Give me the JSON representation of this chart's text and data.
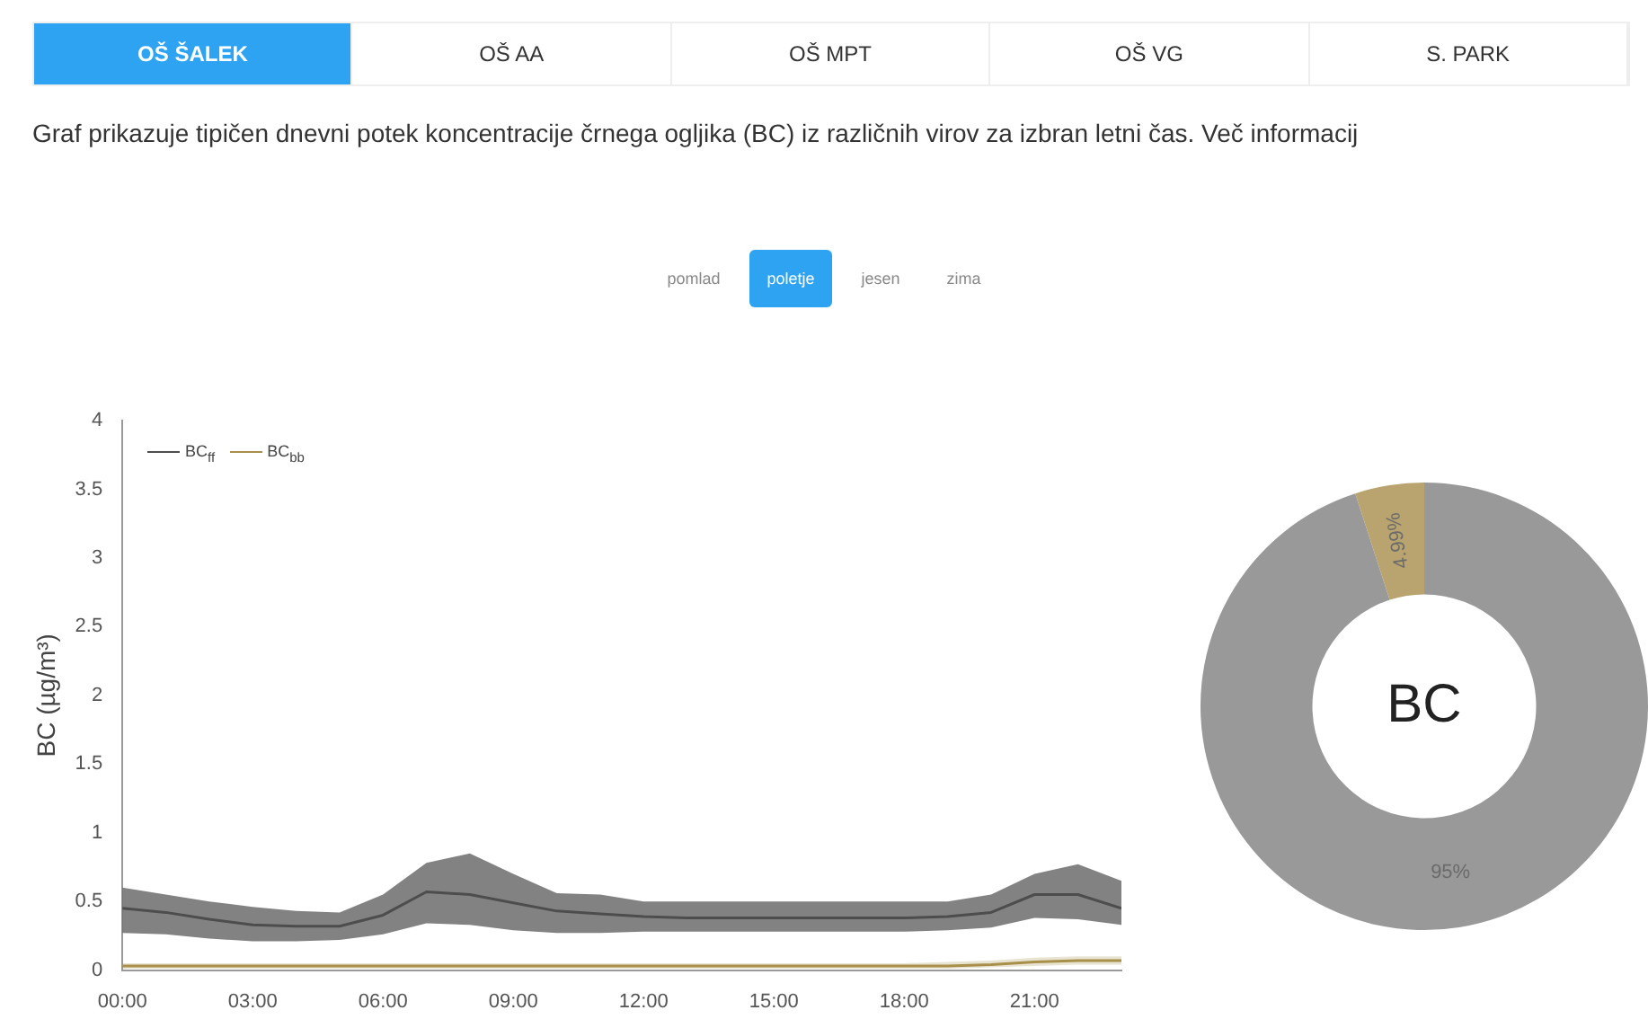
{
  "chart_data": [
    {
      "type": "line",
      "subtitle": "Graf prikazuje tipičen dnevni potek koncentracije črnega ogljika (BC) iz različnih virov za izbran letni čas. Več informacij",
      "annotations": [
        "OŠ ŠALEK",
        "OŠ AA",
        "OŠ MPT",
        "OŠ VG",
        "S. PARK",
        "pomlad",
        "poletje",
        "jesen",
        "zima"
      ],
      "ylabel": "BC (µg/m³)",
      "x": [
        0,
        1,
        2,
        3,
        4,
        5,
        6,
        7,
        8,
        9,
        10,
        11,
        12,
        13,
        14,
        15,
        16,
        17,
        18,
        19,
        20,
        21,
        22,
        23
      ],
      "xlim": [
        0,
        23
      ],
      "xticks": [
        {
          "value": 0,
          "label": "00:00"
        },
        {
          "value": 3,
          "label": "03:00"
        },
        {
          "value": 6,
          "label": "06:00"
        },
        {
          "value": 9,
          "label": "09:00"
        },
        {
          "value": 12,
          "label": "12:00"
        },
        {
          "value": 15,
          "label": "15:00"
        },
        {
          "value": 18,
          "label": "18:00"
        },
        {
          "value": 21,
          "label": "21:00"
        }
      ],
      "ylim": [
        0,
        4
      ],
      "yticks": [
        0,
        0.5,
        1,
        1.5,
        2,
        2.5,
        3,
        3.5,
        4
      ],
      "grid": false,
      "legend": "top left",
      "marker": "none",
      "line_style": "solid",
      "series": [
        {
          "name": "BC$_{ff}$",
          "color": "#4d4d4d",
          "values": [
            0.45,
            0.42,
            0.37,
            0.33,
            0.32,
            0.32,
            0.4,
            0.57,
            0.55,
            0.49,
            0.43,
            0.41,
            0.39,
            0.38,
            0.38,
            0.38,
            0.38,
            0.38,
            0.38,
            0.39,
            0.42,
            0.55,
            0.55,
            0.45
          ],
          "lower": [
            0.27,
            0.26,
            0.23,
            0.21,
            0.21,
            0.22,
            0.26,
            0.34,
            0.33,
            0.29,
            0.27,
            0.27,
            0.28,
            0.28,
            0.28,
            0.28,
            0.28,
            0.28,
            0.28,
            0.29,
            0.31,
            0.38,
            0.37,
            0.33
          ],
          "upper": [
            0.6,
            0.55,
            0.5,
            0.46,
            0.43,
            0.42,
            0.55,
            0.78,
            0.85,
            0.7,
            0.56,
            0.55,
            0.5,
            0.5,
            0.5,
            0.5,
            0.5,
            0.5,
            0.5,
            0.5,
            0.55,
            0.7,
            0.77,
            0.65
          ]
        },
        {
          "name": "BC$_{bb}$",
          "color": "#a8904a",
          "values": [
            0.03,
            0.03,
            0.03,
            0.03,
            0.03,
            0.03,
            0.03,
            0.03,
            0.03,
            0.03,
            0.03,
            0.03,
            0.03,
            0.03,
            0.03,
            0.03,
            0.03,
            0.03,
            0.03,
            0.03,
            0.04,
            0.06,
            0.07,
            0.07
          ],
          "lower": [
            0.01,
            0.01,
            0.01,
            0.01,
            0.01,
            0.01,
            0.01,
            0.01,
            0.01,
            0.01,
            0.01,
            0.01,
            0.01,
            0.01,
            0.01,
            0.01,
            0.01,
            0.01,
            0.01,
            0.01,
            0.02,
            0.03,
            0.04,
            0.04
          ],
          "upper": [
            0.05,
            0.05,
            0.05,
            0.05,
            0.05,
            0.05,
            0.05,
            0.05,
            0.05,
            0.05,
            0.05,
            0.05,
            0.05,
            0.05,
            0.05,
            0.05,
            0.05,
            0.05,
            0.05,
            0.06,
            0.07,
            0.09,
            0.1,
            0.1
          ]
        }
      ]
    },
    {
      "type": "donut",
      "title": "BC",
      "categories": [
        null,
        null
      ],
      "values": [
        95,
        4.99
      ],
      "colors": [
        "#999999",
        "#b9a36e"
      ],
      "value_labels": [
        "95%",
        "4.99%"
      ]
    }
  ]
}
